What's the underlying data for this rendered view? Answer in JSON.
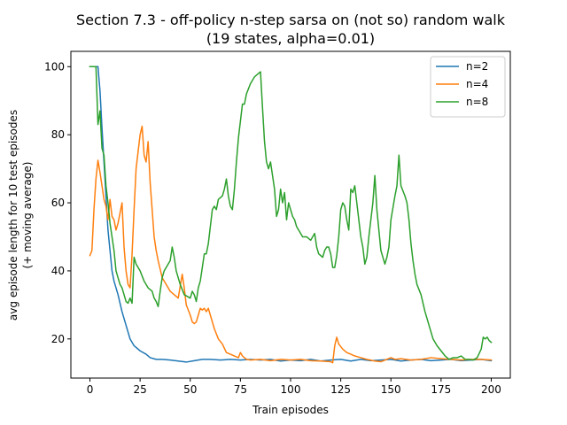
{
  "chart_data": {
    "type": "line",
    "title": "Section 7.3 - off-policy n-step sarsa on (not so) random walk",
    "subtitle": "(19 states, alpha=0.01)",
    "xlabel": "Train episodes",
    "ylabel": "avg episode length for 10 test episodes",
    "ylabel2": "(+ moving average)",
    "xlim": [
      -9.5,
      209.5
    ],
    "ylim": [
      8.5,
      104.5
    ],
    "xticks": [
      0,
      25,
      50,
      75,
      100,
      125,
      150,
      175,
      200
    ],
    "yticks": [
      20,
      40,
      60,
      80,
      100
    ],
    "grid": false,
    "legend_position": "top-right",
    "series": [
      {
        "name": "n=2",
        "color": "#1f77b4",
        "points": [
          [
            0,
            100
          ],
          [
            4,
            100
          ],
          [
            5,
            93
          ],
          [
            6,
            82
          ],
          [
            7,
            72
          ],
          [
            8,
            62
          ],
          [
            9,
            52
          ],
          [
            10,
            46
          ],
          [
            11,
            40
          ],
          [
            12,
            37
          ],
          [
            14,
            33
          ],
          [
            16,
            28
          ],
          [
            18,
            24
          ],
          [
            20,
            20
          ],
          [
            22,
            18
          ],
          [
            25,
            16.5
          ],
          [
            28,
            15.5
          ],
          [
            30,
            14.5
          ],
          [
            33,
            14
          ],
          [
            36,
            14
          ],
          [
            40,
            13.8
          ],
          [
            44,
            13.5
          ],
          [
            48,
            13.2
          ],
          [
            52,
            13.6
          ],
          [
            56,
            14
          ],
          [
            60,
            14
          ],
          [
            65,
            13.8
          ],
          [
            70,
            14
          ],
          [
            75,
            13.8
          ],
          [
            80,
            14
          ],
          [
            85,
            13.8
          ],
          [
            90,
            14
          ],
          [
            95,
            13.5
          ],
          [
            100,
            13.8
          ],
          [
            105,
            13.6
          ],
          [
            110,
            14
          ],
          [
            115,
            13.5
          ],
          [
            120,
            13.8
          ],
          [
            125,
            14
          ],
          [
            130,
            13.5
          ],
          [
            135,
            14
          ],
          [
            140,
            13.6
          ],
          [
            145,
            13.8
          ],
          [
            150,
            14
          ],
          [
            155,
            13.5
          ],
          [
            160,
            13.8
          ],
          [
            165,
            14
          ],
          [
            170,
            13.6
          ],
          [
            175,
            13.8
          ],
          [
            180,
            14
          ],
          [
            185,
            13.6
          ],
          [
            190,
            13.8
          ],
          [
            195,
            14
          ],
          [
            200,
            13.6
          ]
        ]
      },
      {
        "name": "n=4",
        "color": "#ff7f0e",
        "points": [
          [
            0,
            44.5
          ],
          [
            1,
            46
          ],
          [
            2,
            58
          ],
          [
            3,
            67
          ],
          [
            4,
            72.5
          ],
          [
            5,
            69
          ],
          [
            6,
            65
          ],
          [
            7,
            61
          ],
          [
            8,
            59
          ],
          [
            9,
            55
          ],
          [
            10,
            61
          ],
          [
            11,
            56
          ],
          [
            12,
            55
          ],
          [
            13,
            52
          ],
          [
            14,
            54
          ],
          [
            15,
            57
          ],
          [
            16,
            60
          ],
          [
            17,
            47
          ],
          [
            18,
            40
          ],
          [
            19,
            36
          ],
          [
            20,
            35
          ],
          [
            21,
            45
          ],
          [
            22,
            58
          ],
          [
            23,
            70
          ],
          [
            24,
            75
          ],
          [
            25,
            80
          ],
          [
            26,
            82.5
          ],
          [
            27,
            74
          ],
          [
            28,
            72
          ],
          [
            29,
            78
          ],
          [
            30,
            66
          ],
          [
            31,
            58
          ],
          [
            32,
            50
          ],
          [
            33,
            46
          ],
          [
            34,
            43
          ],
          [
            36,
            38
          ],
          [
            38,
            36
          ],
          [
            40,
            34
          ],
          [
            42,
            33
          ],
          [
            44,
            32
          ],
          [
            46,
            39
          ],
          [
            47,
            35
          ],
          [
            48,
            30
          ],
          [
            50,
            27
          ],
          [
            51,
            25
          ],
          [
            52,
            24.5
          ],
          [
            53,
            25
          ],
          [
            54,
            27
          ],
          [
            55,
            29
          ],
          [
            56,
            28.5
          ],
          [
            57,
            29
          ],
          [
            58,
            28
          ],
          [
            59,
            29
          ],
          [
            60,
            27
          ],
          [
            62,
            23
          ],
          [
            64,
            20
          ],
          [
            66,
            18.5
          ],
          [
            68,
            16
          ],
          [
            70,
            15.5
          ],
          [
            72,
            15
          ],
          [
            74,
            14.5
          ],
          [
            75,
            16
          ],
          [
            76,
            15
          ],
          [
            78,
            14
          ],
          [
            80,
            13.8
          ],
          [
            85,
            14
          ],
          [
            90,
            13.6
          ],
          [
            95,
            14
          ],
          [
            100,
            13.8
          ],
          [
            105,
            14
          ],
          [
            110,
            13.6
          ],
          [
            115,
            13.5
          ],
          [
            120,
            13.3
          ],
          [
            121,
            13
          ],
          [
            122,
            18
          ],
          [
            123,
            20.5
          ],
          [
            124,
            18.5
          ],
          [
            126,
            17
          ],
          [
            128,
            16
          ],
          [
            130,
            15.5
          ],
          [
            132,
            15
          ],
          [
            135,
            14.5
          ],
          [
            138,
            14
          ],
          [
            142,
            13.5
          ],
          [
            145,
            13.3
          ],
          [
            148,
            14
          ],
          [
            150,
            14.5
          ],
          [
            152,
            14
          ],
          [
            155,
            14.2
          ],
          [
            160,
            13.8
          ],
          [
            165,
            14
          ],
          [
            170,
            14.5
          ],
          [
            175,
            14.2
          ],
          [
            180,
            14
          ],
          [
            185,
            13.8
          ],
          [
            190,
            14
          ],
          [
            195,
            14
          ],
          [
            200,
            13.8
          ]
        ]
      },
      {
        "name": "n=8",
        "color": "#2ca02c",
        "points": [
          [
            0,
            100
          ],
          [
            3,
            100
          ],
          [
            4,
            83
          ],
          [
            5,
            87
          ],
          [
            6,
            76
          ],
          [
            7,
            74
          ],
          [
            8,
            65
          ],
          [
            9,
            60
          ],
          [
            10,
            54
          ],
          [
            11,
            50
          ],
          [
            12,
            46
          ],
          [
            13,
            40
          ],
          [
            14,
            38
          ],
          [
            15,
            36
          ],
          [
            16,
            35
          ],
          [
            17,
            33
          ],
          [
            18,
            31
          ],
          [
            19,
            30.5
          ],
          [
            20,
            32
          ],
          [
            21,
            30.5
          ],
          [
            22,
            44
          ],
          [
            23,
            42
          ],
          [
            25,
            40
          ],
          [
            27,
            37
          ],
          [
            29,
            35
          ],
          [
            31,
            34
          ],
          [
            32,
            32
          ],
          [
            33,
            31
          ],
          [
            34,
            29.5
          ],
          [
            35,
            34
          ],
          [
            36,
            38
          ],
          [
            37,
            40
          ],
          [
            38,
            41
          ],
          [
            39,
            42
          ],
          [
            40,
            43
          ],
          [
            41,
            47
          ],
          [
            42,
            44
          ],
          [
            43,
            40
          ],
          [
            45,
            36
          ],
          [
            47,
            33
          ],
          [
            50,
            32
          ],
          [
            51,
            34
          ],
          [
            52,
            33
          ],
          [
            53,
            31
          ],
          [
            54,
            35
          ],
          [
            55,
            37
          ],
          [
            56,
            41
          ],
          [
            57,
            45
          ],
          [
            58,
            45
          ],
          [
            59,
            48
          ],
          [
            60,
            53
          ],
          [
            61,
            58
          ],
          [
            62,
            59
          ],
          [
            63,
            58
          ],
          [
            64,
            61
          ],
          [
            66,
            62
          ],
          [
            67,
            64
          ],
          [
            68,
            67
          ],
          [
            69,
            62
          ],
          [
            70,
            59
          ],
          [
            71,
            58
          ],
          [
            72,
            64
          ],
          [
            73,
            72
          ],
          [
            74,
            79
          ],
          [
            75,
            84
          ],
          [
            76,
            89
          ],
          [
            77,
            89
          ],
          [
            78,
            92
          ],
          [
            80,
            95
          ],
          [
            82,
            97
          ],
          [
            84,
            98
          ],
          [
            85,
            98.5
          ],
          [
            86,
            88
          ],
          [
            87,
            78
          ],
          [
            88,
            72
          ],
          [
            89,
            70
          ],
          [
            90,
            72
          ],
          [
            91,
            68
          ],
          [
            92,
            64
          ],
          [
            93,
            56
          ],
          [
            94,
            58
          ],
          [
            95,
            64
          ],
          [
            96,
            60
          ],
          [
            97,
            63
          ],
          [
            98,
            55
          ],
          [
            99,
            60
          ],
          [
            100,
            58
          ],
          [
            101,
            56
          ],
          [
            102,
            55
          ],
          [
            103,
            53
          ],
          [
            104,
            52
          ],
          [
            106,
            50
          ],
          [
            108,
            50
          ],
          [
            110,
            49
          ],
          [
            112,
            51
          ],
          [
            113,
            47
          ],
          [
            114,
            45
          ],
          [
            115,
            44.5
          ],
          [
            116,
            44
          ],
          [
            117,
            46
          ],
          [
            118,
            47
          ],
          [
            119,
            47
          ],
          [
            120,
            45
          ],
          [
            121,
            41
          ],
          [
            122,
            41
          ],
          [
            123,
            44.5
          ],
          [
            124,
            50
          ],
          [
            125,
            58
          ],
          [
            126,
            60
          ],
          [
            127,
            59
          ],
          [
            128,
            55
          ],
          [
            129,
            52
          ],
          [
            130,
            64
          ],
          [
            131,
            63
          ],
          [
            132,
            65
          ],
          [
            133,
            60
          ],
          [
            134,
            55
          ],
          [
            135,
            50
          ],
          [
            136,
            47
          ],
          [
            137,
            42
          ],
          [
            138,
            44
          ],
          [
            139,
            50
          ],
          [
            140,
            55
          ],
          [
            141,
            60
          ],
          [
            142,
            68
          ],
          [
            143,
            58
          ],
          [
            144,
            52
          ],
          [
            145,
            46
          ],
          [
            146,
            44
          ],
          [
            147,
            42
          ],
          [
            148,
            44
          ],
          [
            149,
            47
          ],
          [
            150,
            55
          ],
          [
            152,
            62
          ],
          [
            153,
            65
          ],
          [
            154,
            74
          ],
          [
            155,
            65
          ],
          [
            157,
            62
          ],
          [
            158,
            60
          ],
          [
            159,
            55
          ],
          [
            160,
            48
          ],
          [
            161,
            43
          ],
          [
            162,
            39
          ],
          [
            163,
            36
          ],
          [
            165,
            33
          ],
          [
            167,
            28
          ],
          [
            169,
            24
          ],
          [
            171,
            20
          ],
          [
            173,
            18
          ],
          [
            175,
            16.5
          ],
          [
            177,
            15
          ],
          [
            179,
            14
          ],
          [
            181,
            14.5
          ],
          [
            183,
            14.5
          ],
          [
            185,
            15
          ],
          [
            187,
            14
          ],
          [
            189,
            14
          ],
          [
            191,
            13.8
          ],
          [
            193,
            14.5
          ],
          [
            195,
            17
          ],
          [
            196,
            20.5
          ],
          [
            197,
            20
          ],
          [
            198,
            20.5
          ],
          [
            199,
            19.5
          ],
          [
            200,
            19
          ]
        ]
      }
    ]
  }
}
